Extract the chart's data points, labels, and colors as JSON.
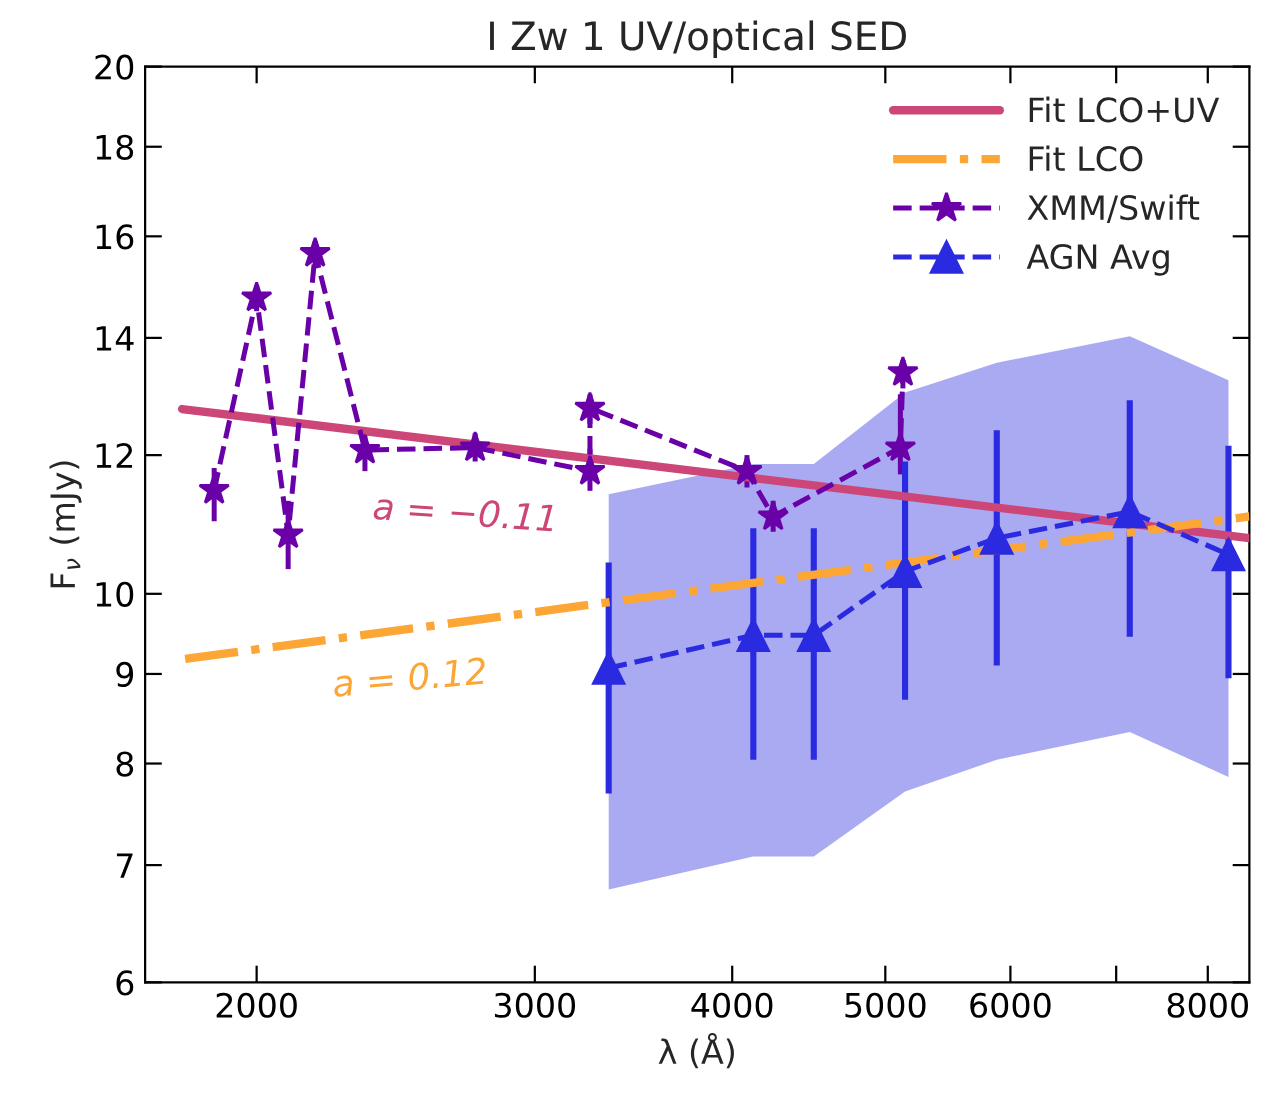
{
  "chart_data": {
    "type": "line",
    "title": "I Zw 1 UV/optical SED",
    "xlabel": "λ (Å)",
    "ylabel": "F$_{ν}$ (mJy)",
    "log": "xy",
    "xlim": [
      1700,
      8500
    ],
    "ylim": [
      6,
      20
    ],
    "xticks": [
      2000,
      3000,
      4000,
      5000,
      6000,
      {
        "value": 7000,
        "label": null
      },
      8000
    ],
    "yticks": [
      6,
      7,
      8,
      9,
      10,
      12,
      14,
      16,
      18,
      20
    ],
    "grid": false,
    "legend": "top right",
    "series": [
      {
        "name": "Fit LCO+UV",
        "color": "#cc4778",
        "line_style": "solid",
        "marker": "none",
        "x": [
          1794,
          8500
        ],
        "values": [
          12.75,
          10.76
        ]
      },
      {
        "name": "Fit LCO",
        "color": "#fca636",
        "line_style": "dashdot",
        "marker": "none",
        "x": [
          1802,
          8500
        ],
        "values": [
          9.18,
          11.07
        ]
      },
      {
        "name": "XMM/Swift",
        "color": "#6a00a8",
        "line_style": "dashed",
        "marker": "star",
        "x": [
          1880,
          2000,
          2094,
          2178,
          2342,
          2750,
          3251,
          3251,
          4087,
          4246,
          5111,
          5130
        ],
        "values": [
          11.46,
          14.76,
          10.81,
          15.65,
          12.08,
          12.12,
          11.75,
          12.77,
          11.75,
          11.07,
          12.12,
          13.38
        ],
        "errors": [
          [
            11.0,
            11.8
          ],
          [
            14.5,
            15.0
          ],
          [
            10.33,
            11.3
          ],
          [
            15.4,
            15.9
          ],
          [
            11.75,
            12.4
          ],
          [
            11.9,
            12.35
          ],
          [
            11.45,
            12.1
          ],
          [
            12.5,
            13.0
          ],
          [
            11.5,
            12.0
          ],
          [
            10.85,
            11.3
          ],
          [
            11.7,
            13.0
          ],
          [
            13.1,
            13.6
          ]
        ]
      },
      {
        "name": "AGN Avg",
        "color": "#2a2ae0",
        "line_style": "dashed",
        "marker": "triangle",
        "x": [
          3341,
          4125,
          4505,
          5146,
          5882,
          7140,
          8245
        ],
        "values": [
          9.07,
          9.47,
          9.47,
          10.3,
          10.76,
          11.14,
          10.53
        ],
        "errors": [
          [
            7.69,
            10.42
          ],
          [
            8.04,
            10.9
          ],
          [
            8.04,
            10.9
          ],
          [
            8.7,
            11.9
          ],
          [
            9.1,
            12.4
          ],
          [
            9.45,
            12.9
          ],
          [
            8.95,
            12.15
          ]
        ],
        "lower": [
          6.78,
          7.08,
          7.08,
          7.71,
          8.04,
          8.34,
          7.86
        ],
        "upper": [
          11.4,
          11.86,
          11.86,
          13.03,
          13.55,
          14.03,
          13.24
        ]
      }
    ],
    "annotations": [
      "a = −0.11",
      "a = 0.12"
    ]
  }
}
